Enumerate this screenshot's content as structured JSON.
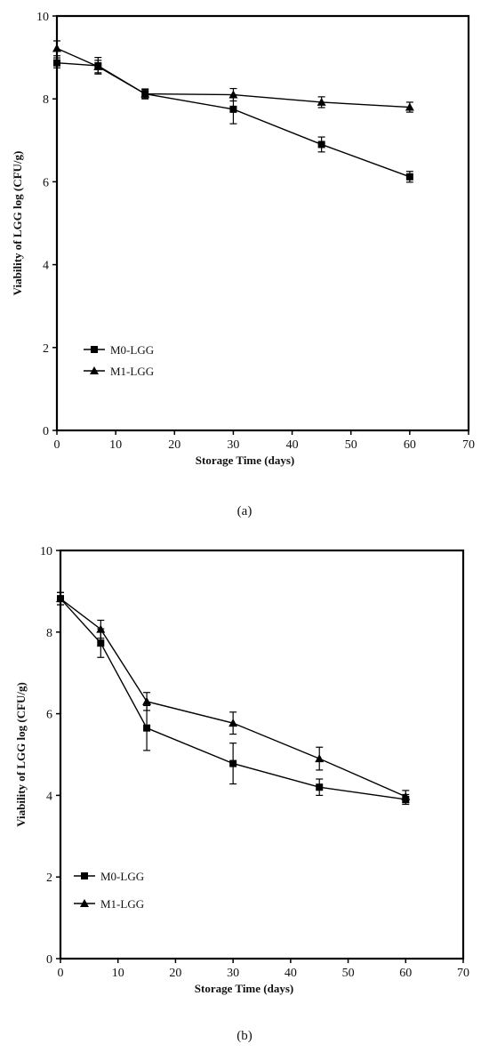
{
  "chart_data": [
    {
      "type": "line",
      "caption": "(a)",
      "xlabel": "Storage Time (days)",
      "ylabel": "Viability of LGG log (CFU/g)",
      "xlim": [
        0,
        70
      ],
      "ylim": [
        0,
        10
      ],
      "xticks": [
        0,
        10,
        20,
        30,
        40,
        50,
        60,
        70
      ],
      "yticks": [
        0,
        2,
        4,
        6,
        8,
        10
      ],
      "grid": false,
      "legend_position": "bottom-left",
      "x": [
        0,
        7,
        15,
        30,
        45,
        60
      ],
      "series": [
        {
          "name": "M0-LGG",
          "marker": "square",
          "values": [
            8.87,
            8.8,
            8.12,
            7.75,
            6.9,
            6.12
          ],
          "errors": [
            0.12,
            0.2,
            0.12,
            0.35,
            0.18,
            0.13
          ]
        },
        {
          "name": "M1-LGG",
          "marker": "triangle",
          "values": [
            9.22,
            8.78,
            8.12,
            8.1,
            7.92,
            7.8
          ],
          "errors": [
            0.18,
            0.15,
            0.1,
            0.15,
            0.13,
            0.12
          ]
        }
      ]
    },
    {
      "type": "line",
      "caption": "(b)",
      "xlabel": "Storage Time (days)",
      "ylabel": "Viability of LGG log (CFU/g)",
      "xlim": [
        0,
        70
      ],
      "ylim": [
        0,
        10
      ],
      "xticks": [
        0,
        10,
        20,
        30,
        40,
        50,
        60,
        70
      ],
      "yticks": [
        0,
        2,
        4,
        6,
        8,
        10
      ],
      "grid": false,
      "legend_position": "bottom-left",
      "x": [
        0,
        7,
        15,
        30,
        45,
        60
      ],
      "series": [
        {
          "name": "M0-LGG",
          "marker": "square",
          "values": [
            8.82,
            7.73,
            5.65,
            4.78,
            4.2,
            3.9
          ],
          "errors": [
            0.15,
            0.35,
            0.55,
            0.5,
            0.2,
            0.12
          ]
        },
        {
          "name": "M1-LGG",
          "marker": "triangle",
          "values": [
            8.82,
            8.07,
            6.3,
            5.77,
            4.9,
            3.97
          ],
          "errors": [
            0.15,
            0.22,
            0.22,
            0.27,
            0.28,
            0.15
          ]
        }
      ]
    }
  ]
}
